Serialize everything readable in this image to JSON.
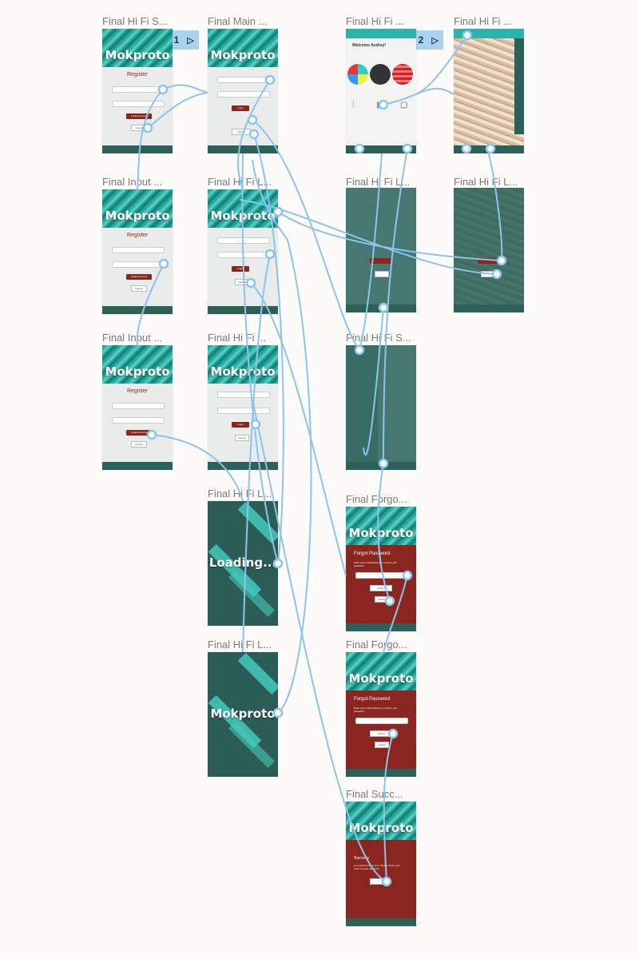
{
  "flows": [
    {
      "label": "Flow 1",
      "icon": "play-icon"
    },
    {
      "label": "Flow 2",
      "icon": "play-icon"
    }
  ],
  "frames": {
    "f1": {
      "title": "Final Hi Fi S..."
    },
    "f2": {
      "title": "Final Main ..."
    },
    "f3": {
      "title": "Final Hi Fi ..."
    },
    "f4": {
      "title": "Final Hi Fi ..."
    },
    "f5": {
      "title": "Final Input ..."
    },
    "f6": {
      "title": "Final Hi Fi L..."
    },
    "f7": {
      "title": "Final Hi Fi L..."
    },
    "f8": {
      "title": "Final Hi Fi L..."
    },
    "f9": {
      "title": "Final Input ..."
    },
    "f10": {
      "title": "Final Hi Fi ..."
    },
    "f11": {
      "title": "Final Hi Fi S..."
    },
    "f12": {
      "title": "Final Hi Fi L..."
    },
    "f13": {
      "title": "Final  Forgo..."
    },
    "f14": {
      "title": "Final Hi Fi L..."
    },
    "f15": {
      "title": "Final  Forgo..."
    },
    "f16": {
      "title": "Final  Succ..."
    }
  },
  "brand": "Mokproto",
  "loading_text": "Loading...",
  "register": {
    "title": "Register",
    "create": "Create Account",
    "cancel": "Cancel"
  },
  "login": {
    "login": "Login",
    "cancel": "Cancel",
    "forgot": "Forgot Password?"
  },
  "forgot": {
    "title": "Forgot Password",
    "desc": "Enter your email address to retrieve your password",
    "submit": "Submit",
    "cancel": "Cancel"
  },
  "success": {
    "title": "Success",
    "desc": "An email has been sent. Please check your inbox to reset password."
  },
  "welcome": {
    "title": "Welcome Audrey!"
  },
  "colors": {
    "teal": "#2ab3a6",
    "dark_teal": "#2c6059",
    "red": "#8a2520",
    "wire": "#8cc4ec"
  }
}
